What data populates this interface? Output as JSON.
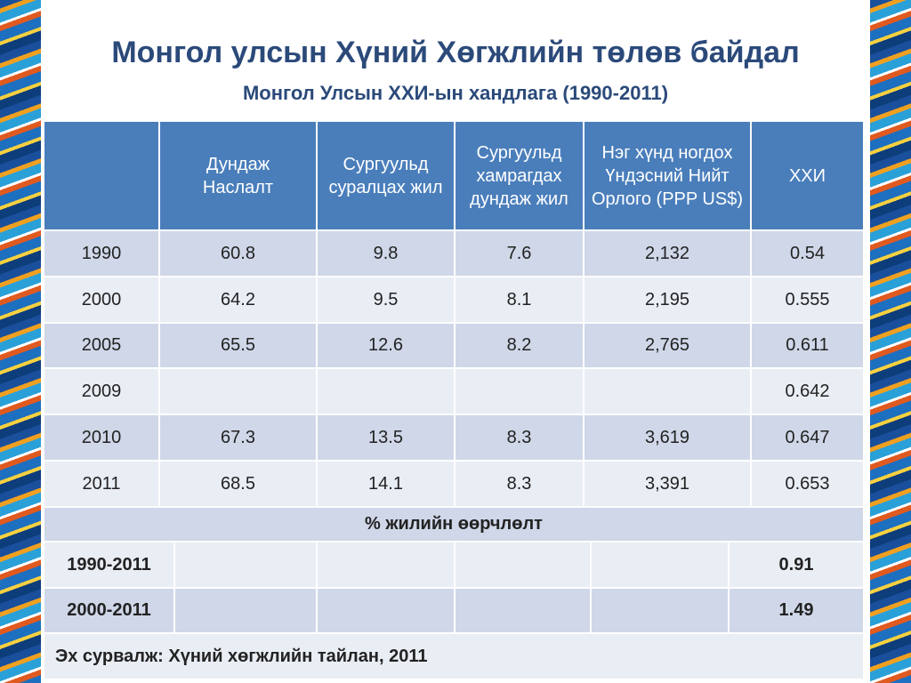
{
  "title": "Монгол улсын Хүний Хөгжлийн төлөв байдал",
  "subtitle": "Монгол Улсын ХХИ-ын хандлага (1990-2011)",
  "table": {
    "header": [
      null,
      "Дундаж Наслалт",
      "Сургуульд суралцах жил",
      "Сургуульд хамрагдах дундаж жил",
      "Нэг хүнд ногдох Үндэсний Нийт Орлого (PPP US$)",
      "ХХИ"
    ],
    "rows": [
      [
        "1990",
        "60.8",
        "9.8",
        "7.6",
        "2,132",
        "0.54"
      ],
      [
        "2000",
        "64.2",
        "9.5",
        "8.1",
        "2,195",
        "0.555"
      ],
      [
        "2005",
        "65.5",
        "12.6",
        "8.2",
        "2,765",
        "0.611"
      ],
      [
        "2009",
        null,
        null,
        null,
        null,
        "0.642"
      ],
      [
        "2010",
        "67.3",
        "13.5",
        "8.3",
        "3,619",
        "0.647"
      ],
      [
        "2011",
        "68.5",
        "14.1",
        "8.3",
        "3,391",
        "0.653"
      ]
    ],
    "section": "% жилийн өөрчлөлт",
    "change_rows": [
      [
        "1990-2011",
        null,
        null,
        null,
        null,
        "0.91"
      ],
      [
        "2000-2011",
        null,
        null,
        null,
        null,
        "1.49"
      ]
    ],
    "source": "Эх сурвалж: Хүний хөгжлийн тайлан, 2011"
  }
}
